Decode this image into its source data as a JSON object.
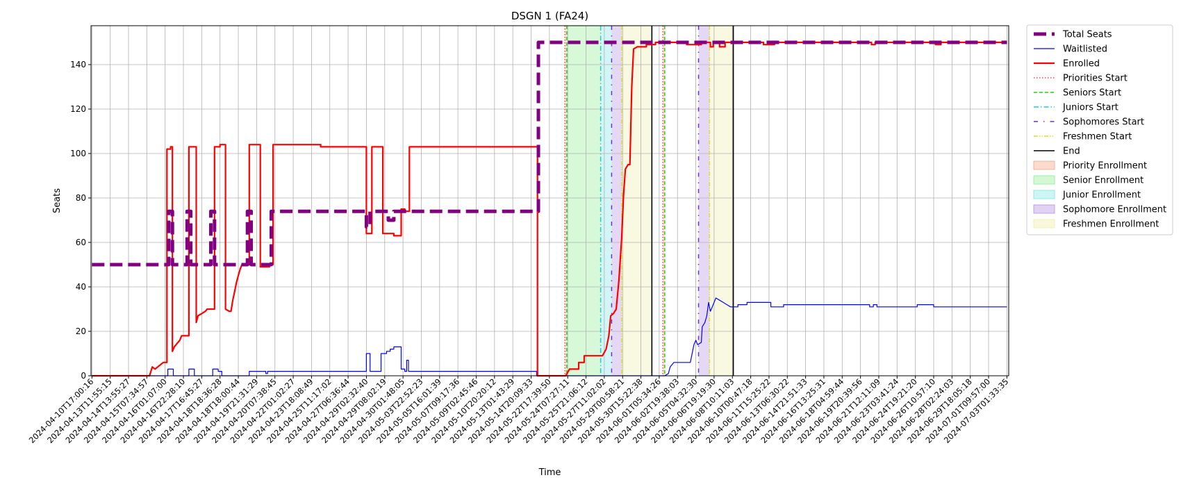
{
  "chart_data": {
    "type": "line",
    "title": "DSGN 1 (FA24)",
    "xlabel": "Time",
    "ylabel": "Seats",
    "ylim": [
      0,
      157.5
    ],
    "grid": true,
    "legend_position": "outside-right-top",
    "y_ticks": [
      0,
      20,
      40,
      60,
      80,
      100,
      120,
      140
    ],
    "x_ticks": [
      "2024-04-10T17:00:16",
      "2024-04-13T11:55:15",
      "2024-04-14T13:55:27",
      "2024-04-15T07:34:57",
      "2024-04-16T01:07:00",
      "2024-04-16T22:28:10",
      "2024-04-17T16:45:27",
      "2024-04-18T18:36:28",
      "2024-04-18T18:00:44",
      "2024-04-19T21:31:29",
      "2024-04-20T07:38:45",
      "2024-04-22T01:02:27",
      "2024-04-23T18:08:49",
      "2024-04-25T11:17:02",
      "2024-04-27T06:36:44",
      "2024-04-29T02:32:40",
      "2024-04-29T08:02:19",
      "2024-04-30T01:48:05",
      "2024-05-03T22:52:23",
      "2024-05-05T16:01:39",
      "2024-05-07T09:17:36",
      "2024-05-09T02:45:46",
      "2024-05-10T20:20:12",
      "2024-05-13T01:43:29",
      "2024-05-14T20:09:33",
      "2024-05-22T17:39:50",
      "2024-05-24T07:27:11",
      "2024-05-25T21:06:12",
      "2024-05-27T11:02:02",
      "2024-05-29T00:58:21",
      "2024-05-30T15:22:38",
      "2024-06-01T05:34:26",
      "2024-06-02T19:38:03",
      "2024-06-05T04:32:30",
      "2024-06-06T19:19:30",
      "2024-06-08T10:11:03",
      "2024-06-10T00:47:18",
      "2024-06-11T15:25:22",
      "2024-06-13T06:30:22",
      "2024-06-14T21:51:33",
      "2024-06-16T13:25:31",
      "2024-06-18T04:59:44",
      "2024-06-19T20:39:56",
      "2024-06-21T12:11:09",
      "2024-06-23T03:41:24",
      "2024-06-24T19:21:20",
      "2024-06-26T10:57:10",
      "2024-06-28T02:24:03",
      "2024-06-29T18:05:18",
      "2024-07-01T09:57:00",
      "2024-07-03T01:33:35"
    ],
    "x_range_ticks": [
      -0.05,
      50.1
    ],
    "series": [
      {
        "name": "Total Seats",
        "color": "#800080",
        "style": "dashed-thick",
        "points": [
          [
            0,
            50
          ],
          [
            4.2,
            50
          ],
          [
            4.2,
            74
          ],
          [
            4.4,
            74
          ],
          [
            4.4,
            50
          ],
          [
            5.2,
            50
          ],
          [
            5.2,
            74
          ],
          [
            5.4,
            74
          ],
          [
            5.4,
            50
          ],
          [
            6.5,
            50
          ],
          [
            6.5,
            74
          ],
          [
            6.7,
            74
          ],
          [
            6.7,
            50
          ],
          [
            8.5,
            50
          ],
          [
            8.5,
            74
          ],
          [
            8.7,
            74
          ],
          [
            8.7,
            50
          ],
          [
            9.8,
            50
          ],
          [
            9.8,
            74
          ],
          [
            15.0,
            74
          ],
          [
            15.0,
            67
          ],
          [
            15.2,
            67
          ],
          [
            15.2,
            74
          ],
          [
            16.2,
            74
          ],
          [
            16.2,
            70
          ],
          [
            16.5,
            70
          ],
          [
            16.5,
            74
          ],
          [
            24.4,
            74
          ],
          [
            24.4,
            150
          ],
          [
            50,
            150
          ]
        ]
      },
      {
        "name": "Waitlisted",
        "color": "#0000ff",
        "style": "solid-thin",
        "points": [
          [
            0,
            0
          ],
          [
            4.15,
            0
          ],
          [
            4.15,
            3
          ],
          [
            4.45,
            3
          ],
          [
            4.45,
            0
          ],
          [
            5.3,
            0
          ],
          [
            5.3,
            3
          ],
          [
            5.6,
            3
          ],
          [
            5.6,
            0
          ],
          [
            6.6,
            0
          ],
          [
            6.6,
            3
          ],
          [
            6.9,
            3
          ],
          [
            6.9,
            2
          ],
          [
            7.1,
            2
          ],
          [
            7.1,
            0
          ],
          [
            8.6,
            0
          ],
          [
            8.6,
            2
          ],
          [
            9.5,
            2
          ],
          [
            9.5,
            1
          ],
          [
            9.6,
            1
          ],
          [
            9.6,
            2
          ],
          [
            15.0,
            2
          ],
          [
            15.0,
            10
          ],
          [
            15.2,
            10
          ],
          [
            15.2,
            2
          ],
          [
            15.8,
            2
          ],
          [
            15.8,
            10
          ],
          [
            16.1,
            10
          ],
          [
            16.1,
            11
          ],
          [
            16.3,
            11
          ],
          [
            16.3,
            12
          ],
          [
            16.5,
            12
          ],
          [
            16.5,
            13
          ],
          [
            16.9,
            13
          ],
          [
            16.9,
            3
          ],
          [
            17.1,
            3
          ],
          [
            17.1,
            2
          ],
          [
            17.2,
            2
          ],
          [
            17.2,
            7
          ],
          [
            17.3,
            7
          ],
          [
            17.3,
            2
          ],
          [
            24.3,
            2
          ],
          [
            24.3,
            0
          ],
          [
            31.3,
            0
          ],
          [
            31.5,
            1
          ],
          [
            31.6,
            4
          ],
          [
            31.8,
            6
          ],
          [
            32.7,
            6
          ],
          [
            32.8,
            10
          ],
          [
            32.9,
            14
          ],
          [
            33.0,
            16
          ],
          [
            33.1,
            14
          ],
          [
            33.3,
            15
          ],
          [
            33.35,
            22
          ],
          [
            33.5,
            24
          ],
          [
            33.6,
            27
          ],
          [
            33.7,
            33
          ],
          [
            33.8,
            29
          ],
          [
            33.9,
            31
          ],
          [
            34.0,
            33
          ],
          [
            34.1,
            35
          ],
          [
            34.3,
            34
          ],
          [
            34.5,
            33
          ],
          [
            34.7,
            32
          ],
          [
            34.9,
            31
          ],
          [
            35.3,
            31
          ],
          [
            35.3,
            32
          ],
          [
            35.8,
            32
          ],
          [
            35.8,
            33
          ],
          [
            37.1,
            33
          ],
          [
            37.1,
            31
          ],
          [
            37.8,
            31
          ],
          [
            37.8,
            32
          ],
          [
            42.5,
            32
          ],
          [
            42.5,
            31
          ],
          [
            42.7,
            31
          ],
          [
            42.7,
            32
          ],
          [
            42.9,
            32
          ],
          [
            42.9,
            31
          ],
          [
            45.1,
            31
          ],
          [
            45.1,
            32
          ],
          [
            46.0,
            32
          ],
          [
            46.0,
            31
          ],
          [
            50,
            31
          ]
        ]
      },
      {
        "name": "Enrolled",
        "color": "#ff0000",
        "style": "solid-thick",
        "points": [
          [
            0,
            0
          ],
          [
            3.15,
            0
          ],
          [
            3.3,
            4
          ],
          [
            3.45,
            3
          ],
          [
            3.6,
            4
          ],
          [
            3.75,
            5
          ],
          [
            3.9,
            6
          ],
          [
            4.1,
            6
          ],
          [
            4.1,
            102
          ],
          [
            4.3,
            102
          ],
          [
            4.3,
            103
          ],
          [
            4.4,
            103
          ],
          [
            4.4,
            11
          ],
          [
            4.5,
            13
          ],
          [
            4.6,
            14
          ],
          [
            4.8,
            16
          ],
          [
            4.9,
            18
          ],
          [
            5.3,
            18
          ],
          [
            5.3,
            103
          ],
          [
            5.7,
            103
          ],
          [
            5.7,
            24
          ],
          [
            5.8,
            27
          ],
          [
            6.0,
            28
          ],
          [
            6.2,
            29
          ],
          [
            6.3,
            30
          ],
          [
            6.7,
            30
          ],
          [
            6.7,
            103
          ],
          [
            7.0,
            103
          ],
          [
            7.0,
            104
          ],
          [
            7.3,
            104
          ],
          [
            7.3,
            30
          ],
          [
            7.5,
            29
          ],
          [
            7.6,
            29
          ],
          [
            7.7,
            34
          ],
          [
            7.8,
            38
          ],
          [
            7.9,
            42
          ],
          [
            8.0,
            45
          ],
          [
            8.1,
            48
          ],
          [
            8.2,
            50
          ],
          [
            8.6,
            50
          ],
          [
            8.6,
            104
          ],
          [
            9.2,
            104
          ],
          [
            9.2,
            49
          ],
          [
            9.7,
            49
          ],
          [
            9.7,
            50
          ],
          [
            9.9,
            50
          ],
          [
            9.9,
            104
          ],
          [
            12.5,
            104
          ],
          [
            12.5,
            103
          ],
          [
            15.0,
            103
          ],
          [
            15.0,
            64
          ],
          [
            15.3,
            64
          ],
          [
            15.3,
            103
          ],
          [
            15.9,
            103
          ],
          [
            15.9,
            64
          ],
          [
            16.5,
            64
          ],
          [
            16.5,
            63
          ],
          [
            16.9,
            63
          ],
          [
            16.9,
            75
          ],
          [
            17.1,
            75
          ],
          [
            17.1,
            74
          ],
          [
            17.35,
            74
          ],
          [
            17.35,
            103
          ],
          [
            24.35,
            103
          ],
          [
            24.35,
            0
          ],
          [
            25.9,
            0
          ],
          [
            26.1,
            3
          ],
          [
            26.6,
            3
          ],
          [
            26.6,
            6
          ],
          [
            26.9,
            6
          ],
          [
            26.9,
            9
          ],
          [
            27.9,
            9
          ],
          [
            28.1,
            12
          ],
          [
            28.25,
            18
          ],
          [
            28.35,
            27
          ],
          [
            28.5,
            28
          ],
          [
            28.65,
            30
          ],
          [
            28.8,
            43
          ],
          [
            28.95,
            62
          ],
          [
            29.05,
            81
          ],
          [
            29.15,
            93
          ],
          [
            29.3,
            95
          ],
          [
            29.4,
            95
          ],
          [
            29.5,
            130
          ],
          [
            29.6,
            147
          ],
          [
            29.8,
            148
          ],
          [
            30.3,
            148
          ],
          [
            30.3,
            149
          ],
          [
            30.8,
            149
          ],
          [
            30.8,
            150
          ],
          [
            32.5,
            150
          ],
          [
            32.5,
            149
          ],
          [
            33.3,
            149
          ],
          [
            33.3,
            150
          ],
          [
            33.8,
            150
          ],
          [
            33.8,
            148
          ],
          [
            33.95,
            148
          ],
          [
            33.95,
            150
          ],
          [
            34.3,
            150
          ],
          [
            34.3,
            148
          ],
          [
            34.6,
            148
          ],
          [
            34.6,
            150
          ],
          [
            36.7,
            150
          ],
          [
            36.7,
            149
          ],
          [
            37.3,
            149
          ],
          [
            37.3,
            150
          ],
          [
            42.6,
            150
          ],
          [
            42.6,
            149
          ],
          [
            42.8,
            149
          ],
          [
            42.8,
            150
          ],
          [
            46.1,
            150
          ],
          [
            46.1,
            149
          ],
          [
            46.4,
            149
          ],
          [
            46.4,
            150
          ],
          [
            50,
            150
          ]
        ]
      }
    ],
    "vlines": [
      {
        "name": "Priorities Start",
        "color": "#ff4444",
        "style": "dotted",
        "x": [
          25.85,
          31.2
        ]
      },
      {
        "name": "Seniors Start",
        "color": "#22cc22",
        "style": "dashed",
        "x": [
          25.95,
          31.3
        ]
      },
      {
        "name": "Juniors Start",
        "color": "#22cccc",
        "style": "dashdot",
        "x": [
          27.8
        ]
      },
      {
        "name": "Sophomores Start",
        "color": "#6633cc",
        "style": "loosedashdot",
        "x": [
          28.4,
          33.15
        ]
      },
      {
        "name": "Freshmen Start",
        "color": "#dddd33",
        "style": "dashdotdot",
        "x": [
          28.95,
          33.75
        ]
      },
      {
        "name": "End",
        "color": "#000000",
        "style": "solid",
        "x": [
          30.6,
          35.05
        ]
      }
    ],
    "spans": [
      {
        "name": "Priority Enrollment",
        "color": "#f4a582",
        "ranges": [
          [
            25.85,
            25.95
          ],
          [
            31.2,
            31.3
          ]
        ]
      },
      {
        "name": "Senior Enrollment",
        "color": "#90ee90",
        "ranges": [
          [
            25.95,
            27.8
          ]
        ]
      },
      {
        "name": "Junior Enrollment",
        "color": "#7fe5e5",
        "ranges": [
          [
            27.8,
            28.4
          ]
        ]
      },
      {
        "name": "Sophomore Enrollment",
        "color": "#b48ee0",
        "ranges": [
          [
            28.4,
            28.95
          ],
          [
            33.15,
            33.75
          ]
        ]
      },
      {
        "name": "Freshmen Enrollment",
        "color": "#eeeeaa",
        "ranges": [
          [
            28.95,
            30.6
          ],
          [
            33.75,
            35.05
          ]
        ]
      }
    ],
    "legend": [
      {
        "label": "Total Seats",
        "kind": "line",
        "color": "#800080",
        "style": "dashed-thick"
      },
      {
        "label": "Waitlisted",
        "kind": "line",
        "color": "#0000ff",
        "style": "solid-thin"
      },
      {
        "label": "Enrolled",
        "kind": "line",
        "color": "#ff0000",
        "style": "solid-thick"
      },
      {
        "label": "Priorities Start",
        "kind": "line",
        "color": "#ff4444",
        "style": "dotted"
      },
      {
        "label": "Seniors Start",
        "kind": "line",
        "color": "#22cc22",
        "style": "dashed"
      },
      {
        "label": "Juniors Start",
        "kind": "line",
        "color": "#22cccc",
        "style": "dashdot"
      },
      {
        "label": "Sophomores Start",
        "kind": "line",
        "color": "#6633cc",
        "style": "loosedashdot"
      },
      {
        "label": "Freshmen Start",
        "kind": "line",
        "color": "#dddd33",
        "style": "dashdotdot"
      },
      {
        "label": "End",
        "kind": "line",
        "color": "#000000",
        "style": "solid"
      },
      {
        "label": "Priority Enrollment",
        "kind": "patch",
        "color": "#f4a582"
      },
      {
        "label": "Senior Enrollment",
        "kind": "patch",
        "color": "#90ee90"
      },
      {
        "label": "Junior Enrollment",
        "kind": "patch",
        "color": "#7fe5e5"
      },
      {
        "label": "Sophomore Enrollment",
        "kind": "patch",
        "color": "#b48ee0"
      },
      {
        "label": "Freshmen Enrollment",
        "kind": "patch",
        "color": "#eeeeaa"
      }
    ]
  }
}
